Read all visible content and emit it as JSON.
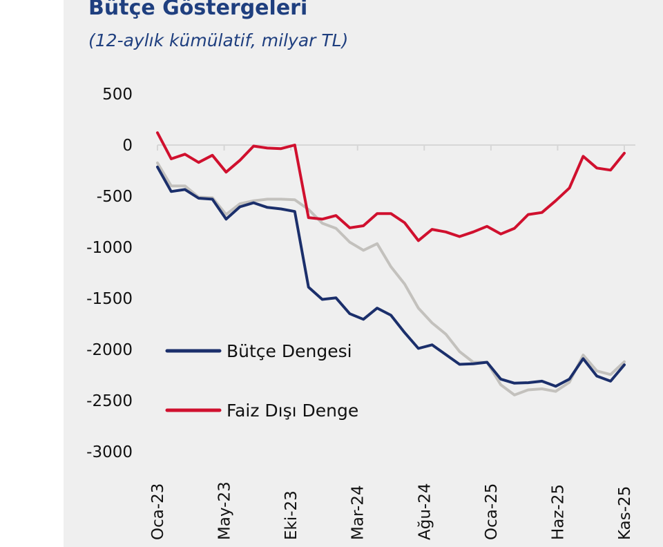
{
  "title": "Bütçe Göstergeleri",
  "subtitle": "(12-aylık kümülatif, milyar TL)",
  "chart_data": {
    "type": "line",
    "title": "Bütçe Göstergeleri",
    "subtitle": "(12-aylık kümülatif, milyar TL)",
    "xlabel": "",
    "ylabel": "",
    "ylim": [
      -3000,
      500
    ],
    "yticks": [
      500,
      0,
      -500,
      -1000,
      -1500,
      -2000,
      -2500,
      -3000
    ],
    "ytick_labels": [
      "500",
      "0",
      "-500",
      "-1000",
      "-1500",
      "-2000",
      "-2500",
      "-3000"
    ],
    "xtick_labels": [
      "Oca-23",
      "May-23",
      "Eki-23",
      "Mar-24",
      "Ağu-24",
      "Oca-25",
      "Haz-25",
      "Kas-25"
    ],
    "legend_placement": "lower-left",
    "grid": false,
    "series": [
      {
        "name": "Bütçe Dengesi",
        "color": "#1b2f6b",
        "in_legend": true,
        "values": [
          -215,
          -455,
          -435,
          -520,
          -530,
          -725,
          -605,
          -565,
          -610,
          -625,
          -650,
          -1390,
          -1510,
          -1495,
          -1650,
          -1705,
          -1595,
          -1665,
          -1835,
          -1990,
          -1955,
          -2050,
          -2145,
          -2140,
          -2125,
          -2290,
          -2330,
          -2325,
          -2310,
          -2360,
          -2290,
          -2090,
          -2260,
          -2310,
          -2150
        ]
      },
      {
        "name": "Faiz Dışı Denge",
        "color": "#d0102e",
        "in_legend": true,
        "values": [
          120,
          -135,
          -90,
          -170,
          -100,
          -265,
          -150,
          -10,
          -30,
          -35,
          0,
          -710,
          -725,
          -690,
          -810,
          -790,
          -670,
          -670,
          -760,
          -935,
          -825,
          -850,
          -895,
          -850,
          -795,
          -870,
          -815,
          -680,
          -660,
          -545,
          -420,
          -110,
          -225,
          -245,
          -80
        ]
      },
      {
        "name": "",
        "color": "#c3c1bd",
        "in_legend": false,
        "values": [
          -175,
          -400,
          -400,
          -510,
          -515,
          -680,
          -575,
          -545,
          -530,
          -530,
          -535,
          -630,
          -765,
          -815,
          -950,
          -1030,
          -965,
          -1190,
          -1360,
          -1595,
          -1740,
          -1850,
          -2020,
          -2125,
          -2125,
          -2345,
          -2445,
          -2395,
          -2385,
          -2410,
          -2320,
          -2055,
          -2210,
          -2245,
          -2120
        ]
      }
    ]
  }
}
